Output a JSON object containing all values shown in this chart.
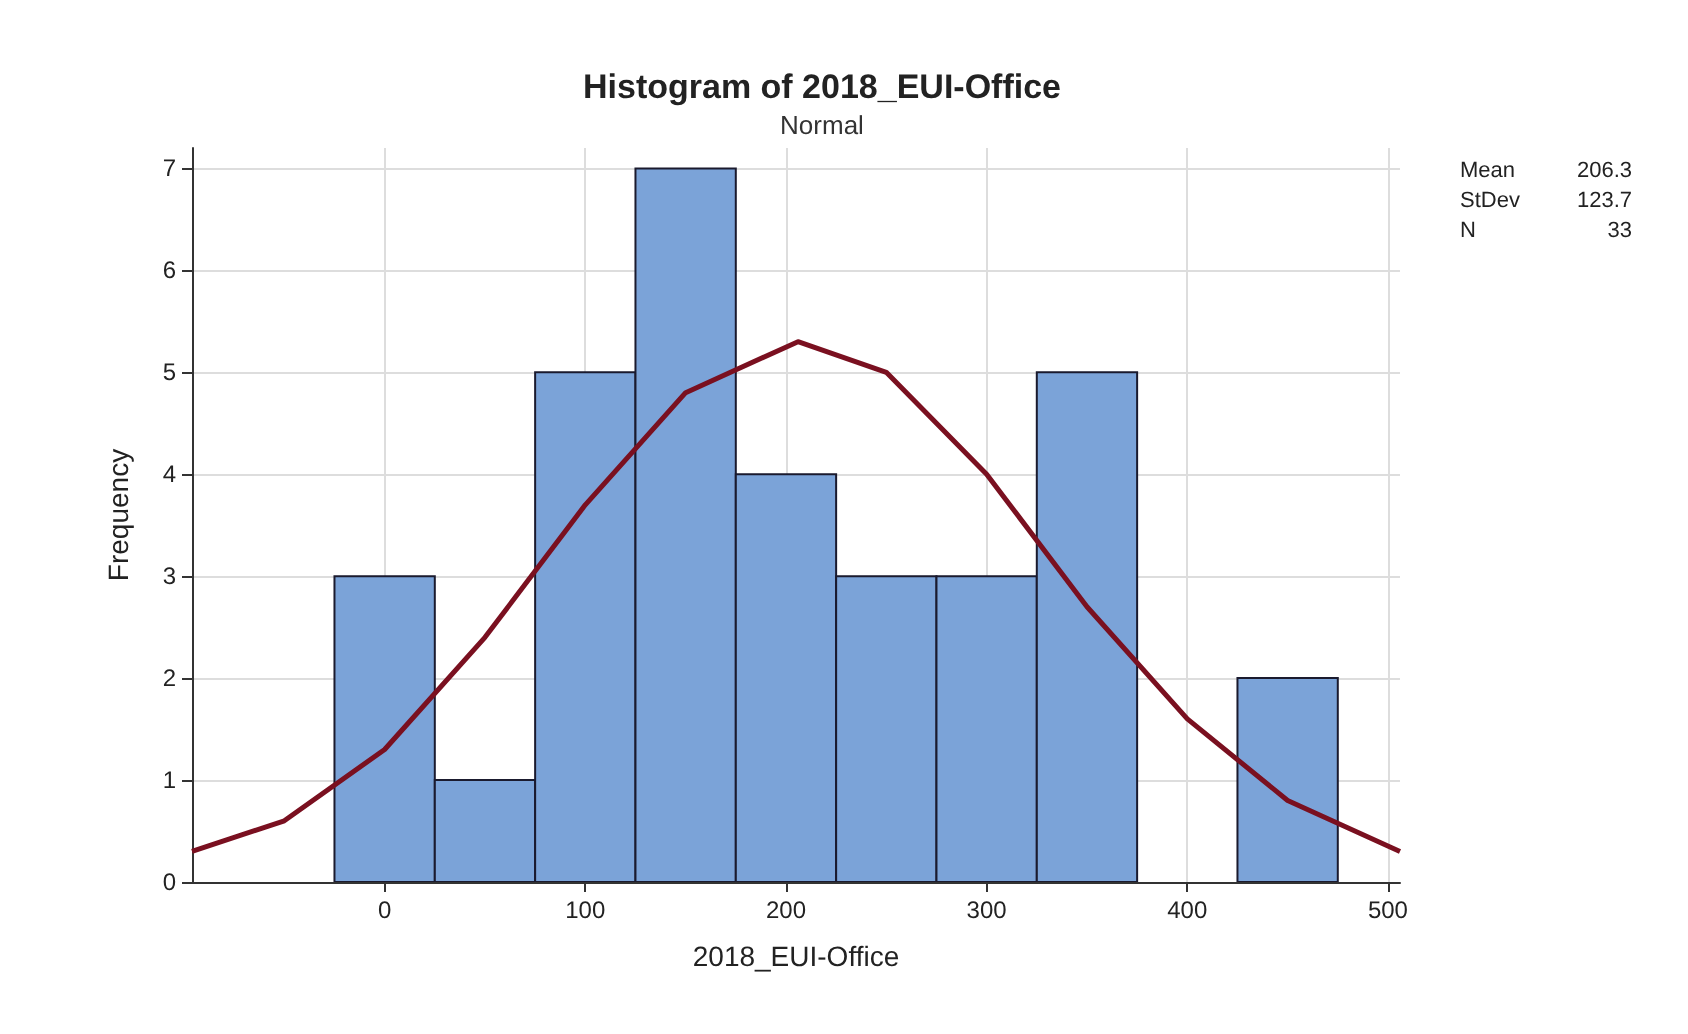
{
  "chart_data": {
    "type": "histogram",
    "title": "Histogram of 2018_EUI-Office",
    "subtitle": "Normal",
    "xlabel": "2018_EUI-Office",
    "ylabel": "Frequency",
    "bins": [
      -25,
      25,
      75,
      125,
      175,
      225,
      275,
      325,
      375,
      425,
      475
    ],
    "series": [
      {
        "color": "#7ba3d8",
        "values": [
          3,
          1,
          5,
          7,
          4,
          3,
          3,
          5,
          0,
          2
        ]
      },
      {
        "type": "line",
        "color": "#7a1020",
        "x": [
          -96,
          -50,
          0,
          50,
          100,
          150,
          206,
          250,
          300,
          350,
          400,
          450,
          506
        ],
        "values": [
          0.3,
          0.6,
          1.3,
          2.4,
          3.7,
          4.8,
          5.3,
          5.0,
          4.0,
          2.7,
          1.6,
          0.8,
          0.3
        ]
      }
    ],
    "xlim": [
      -96,
      506
    ],
    "xticks": [
      0,
      100,
      200,
      300,
      400,
      500
    ],
    "ylim": [
      0,
      7.2
    ],
    "yticks": [
      0,
      1,
      2,
      3,
      4,
      5,
      6,
      7
    ],
    "grid": true,
    "annotations": [
      "Mean 206.3",
      "StDev 123.7",
      "N 33"
    ]
  }
}
